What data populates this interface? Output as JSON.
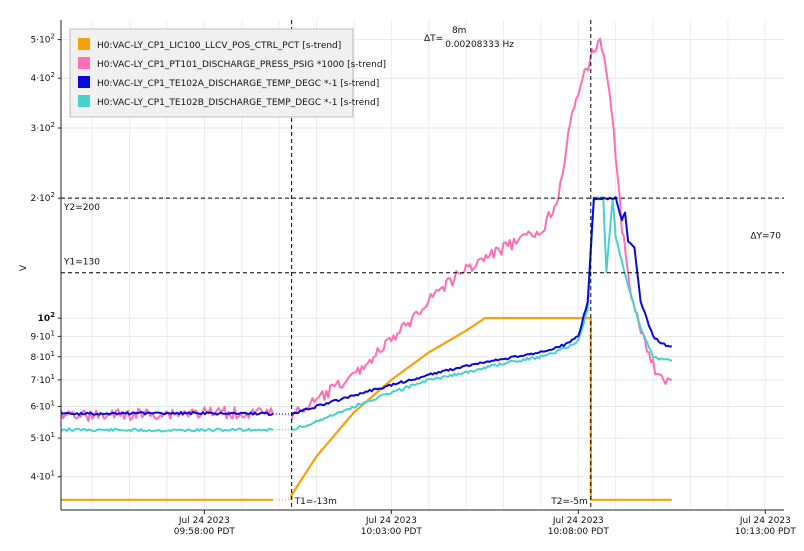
{
  "chart_data": {
    "type": "line",
    "title": "",
    "xlabel": "",
    "ylabel": "V",
    "y_scale": "log",
    "xlim": [
      "2023-07-24T09:54:10",
      "2023-07-24T10:13:30"
    ],
    "ylim": [
      33,
      560
    ],
    "grid": true,
    "legend_position": "top-left",
    "y_ticks": [
      {
        "value": 40,
        "mantissa": "4",
        "power": "1"
      },
      {
        "value": 50,
        "mantissa": "5",
        "power": "1"
      },
      {
        "value": 60,
        "mantissa": "6",
        "power": "1"
      },
      {
        "value": 70,
        "mantissa": "7",
        "power": "1"
      },
      {
        "value": 80,
        "mantissa": "8",
        "power": "1"
      },
      {
        "value": 90,
        "mantissa": "9",
        "power": "1"
      },
      {
        "value": 100,
        "mantissa": "10",
        "power": "2"
      },
      {
        "value": 200,
        "mantissa": "2",
        "power": "2"
      },
      {
        "value": 300,
        "mantissa": "3",
        "power": "2"
      },
      {
        "value": 400,
        "mantissa": "4",
        "power": "2"
      },
      {
        "value": 500,
        "mantissa": "5",
        "power": "2"
      }
    ],
    "x_ticks": [
      {
        "time": "2023-07-24T09:58:00",
        "line1": "Jul 24 2023",
        "line2": "09:58:00 PDT"
      },
      {
        "time": "2023-07-24T10:03:00",
        "line1": "Jul 24 2023",
        "line2": "10:03:00 PDT"
      },
      {
        "time": "2023-07-24T10:08:00",
        "line1": "Jul 24 2023",
        "line2": "10:08:00 PDT"
      },
      {
        "time": "2023-07-24T10:13:00",
        "line1": "Jul 24 2023",
        "line2": "10:13:00 PDT"
      }
    ],
    "cursors": {
      "t1": {
        "time": "2023-07-24T10:00:20",
        "label": "T1=-13m"
      },
      "t2": {
        "time": "2023-07-24T10:08:20",
        "label": "T2=-5m"
      },
      "dt_label": "ΔT=",
      "dt_value": "8m",
      "dt_freq": "0.00208333 Hz",
      "y1": {
        "value": 130,
        "label": "Y1=130"
      },
      "y2": {
        "value": 200,
        "label": "Y2=200"
      },
      "dy_label": "ΔY=70"
    },
    "series": [
      {
        "name": "H0:VAC-LY_CP1_LIC100_LLCV_POS_CTRL_PCT [s-trend]",
        "color": "#f5a20a",
        "gap_after": "2023-07-24T09:59:50",
        "points": [
          [
            "2023-07-24T09:54:10",
            35
          ],
          [
            "2023-07-24T09:59:50",
            35
          ],
          [
            "2023-07-24T10:00:20",
            35
          ],
          [
            "2023-07-24T10:00:20",
            36
          ],
          [
            "2023-07-24T10:01:00",
            45
          ],
          [
            "2023-07-24T10:02:00",
            58
          ],
          [
            "2023-07-24T10:03:00",
            70
          ],
          [
            "2023-07-24T10:04:00",
            82
          ],
          [
            "2023-07-24T10:05:00",
            93
          ],
          [
            "2023-07-24T10:05:30",
            100
          ],
          [
            "2023-07-24T10:08:20",
            100
          ],
          [
            "2023-07-24T10:08:20",
            35
          ],
          [
            "2023-07-24T10:10:30",
            35
          ]
        ]
      },
      {
        "name": "H0:VAC-LY_CP1_PT101_DISCHARGE_PRESS_PSIG *1000 [s-trend]",
        "color": "#ff6eb4",
        "gap_after": "2023-07-24T09:59:50",
        "points": [
          [
            "2023-07-24T09:54:10",
            58
          ],
          [
            "2023-07-24T09:55:00",
            57
          ],
          [
            "2023-07-24T09:56:30",
            57.5
          ],
          [
            "2023-07-24T09:58:00",
            58
          ],
          [
            "2023-07-24T09:59:50",
            57.5
          ],
          [
            "2023-07-24T10:00:20",
            57
          ],
          [
            "2023-07-24T10:01:00",
            62
          ],
          [
            "2023-07-24T10:02:00",
            72
          ],
          [
            "2023-07-24T10:03:00",
            88
          ],
          [
            "2023-07-24T10:03:30",
            98
          ],
          [
            "2023-07-24T10:04:00",
            112
          ],
          [
            "2023-07-24T10:05:00",
            133
          ],
          [
            "2023-07-24T10:06:00",
            150
          ],
          [
            "2023-07-24T10:06:40",
            160
          ],
          [
            "2023-07-24T10:07:00",
            165
          ],
          [
            "2023-07-24T10:07:25",
            195
          ],
          [
            "2023-07-24T10:07:50",
            320
          ],
          [
            "2023-07-24T10:08:10",
            410
          ],
          [
            "2023-07-24T10:08:25",
            470
          ],
          [
            "2023-07-24T10:08:35",
            510
          ],
          [
            "2023-07-24T10:08:50",
            380
          ],
          [
            "2023-07-24T10:09:10",
            170
          ],
          [
            "2023-07-24T10:09:25",
            110
          ],
          [
            "2023-07-24T10:09:50",
            85
          ],
          [
            "2023-07-24T10:10:10",
            70
          ],
          [
            "2023-07-24T10:10:30",
            70
          ]
        ]
      },
      {
        "name": "H0:VAC-LY_CP1_TE102A_DISCHARGE_TEMP_DEGC *-1 [s-trend]",
        "color": "#0a0ad8",
        "gap_after": "2023-07-24T09:59:50",
        "points": [
          [
            "2023-07-24T09:54:10",
            57.5
          ],
          [
            "2023-07-24T09:57:00",
            57.8
          ],
          [
            "2023-07-24T09:59:50",
            57.5
          ],
          [
            "2023-07-24T10:00:20",
            57.5
          ],
          [
            "2023-07-24T10:01:00",
            60
          ],
          [
            "2023-07-24T10:02:00",
            64
          ],
          [
            "2023-07-24T10:03:00",
            68
          ],
          [
            "2023-07-24T10:04:00",
            72
          ],
          [
            "2023-07-24T10:05:00",
            76
          ],
          [
            "2023-07-24T10:06:00",
            79
          ],
          [
            "2023-07-24T10:07:00",
            82
          ],
          [
            "2023-07-24T10:07:40",
            86
          ],
          [
            "2023-07-24T10:08:00",
            90
          ],
          [
            "2023-07-24T10:08:15",
            110
          ],
          [
            "2023-07-24T10:08:25",
            200
          ],
          [
            "2023-07-24T10:09:00",
            200
          ],
          [
            "2023-07-24T10:09:10",
            175
          ],
          [
            "2023-07-24T10:09:15",
            185
          ],
          [
            "2023-07-24T10:09:20",
            155
          ],
          [
            "2023-07-24T10:09:30",
            150
          ],
          [
            "2023-07-24T10:09:40",
            110
          ],
          [
            "2023-07-24T10:10:00",
            90
          ],
          [
            "2023-07-24T10:10:15",
            86
          ],
          [
            "2023-07-24T10:10:30",
            85
          ]
        ]
      },
      {
        "name": "H0:VAC-LY_CP1_TE102B_DISCHARGE_TEMP_DEGC *-1 [s-trend]",
        "color": "#48d1cc",
        "gap_after": "2023-07-24T09:59:50",
        "points": [
          [
            "2023-07-24T09:54:10",
            52.5
          ],
          [
            "2023-07-24T09:57:00",
            52.3
          ],
          [
            "2023-07-24T09:59:50",
            52.5
          ],
          [
            "2023-07-24T10:00:20",
            52.5
          ],
          [
            "2023-07-24T10:01:00",
            55
          ],
          [
            "2023-07-24T10:02:00",
            60
          ],
          [
            "2023-07-24T10:03:00",
            65
          ],
          [
            "2023-07-24T10:04:00",
            70
          ],
          [
            "2023-07-24T10:05:00",
            73
          ],
          [
            "2023-07-24T10:06:00",
            77
          ],
          [
            "2023-07-24T10:07:00",
            80
          ],
          [
            "2023-07-24T10:07:40",
            84
          ],
          [
            "2023-07-24T10:08:00",
            88
          ],
          [
            "2023-07-24T10:08:15",
            105
          ],
          [
            "2023-07-24T10:08:25",
            200
          ],
          [
            "2023-07-24T10:08:40",
            200
          ],
          [
            "2023-07-24T10:08:45",
            130
          ],
          [
            "2023-07-24T10:08:55",
            200
          ],
          [
            "2023-07-24T10:09:00",
            160
          ],
          [
            "2023-07-24T10:09:20",
            120
          ],
          [
            "2023-07-24T10:09:40",
            95
          ],
          [
            "2023-07-24T10:10:00",
            80
          ],
          [
            "2023-07-24T10:10:30",
            78
          ]
        ]
      }
    ]
  }
}
